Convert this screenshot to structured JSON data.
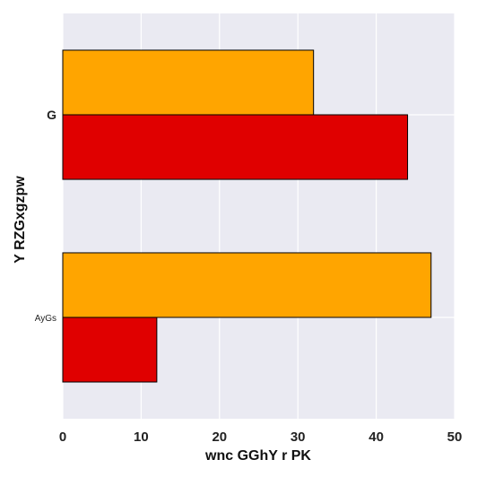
{
  "chart_data": {
    "type": "bar",
    "orientation": "horizontal",
    "categories": [
      "G",
      "AyGs"
    ],
    "series": [
      {
        "color": "#ffa500",
        "values": [
          32,
          47
        ]
      },
      {
        "color": "#e00000",
        "values": [
          44,
          12
        ]
      }
    ],
    "xlabel": "wnc GGhY r PK",
    "ylabel": "Y RZGxgzpw",
    "xlim": [
      0,
      50
    ],
    "xticks": [
      "0",
      "10",
      "20",
      "30",
      "40",
      "50"
    ],
    "grid": true,
    "background": "#eaeaf2",
    "grid_color": "#ffffff"
  }
}
